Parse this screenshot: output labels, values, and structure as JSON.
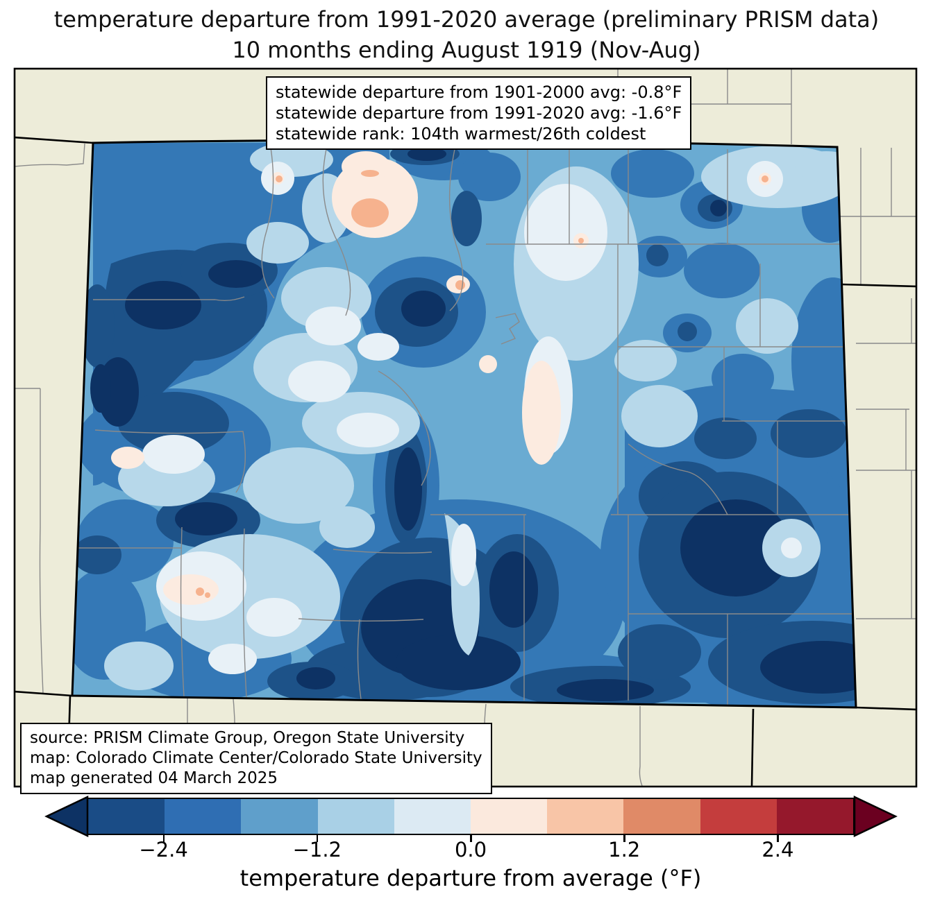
{
  "title": {
    "line1": "temperature departure from 1991-2020 average (preliminary PRISM data)",
    "line2": "10 months ending August 1919 (Nov-Aug)"
  },
  "stats_box": {
    "line1": "statewide departure from 1901-2000 avg: -0.8°F",
    "line2": "statewide departure from 1991-2020 avg: -1.6°F",
    "line3": "statewide rank: 104th warmest/26th coldest"
  },
  "source_box": {
    "line1": "source: PRISM Climate Group, Oregon State University",
    "line2": "map: Colorado Climate Center/Colorado State University",
    "line3": "map generated 04 March 2025"
  },
  "colorbar": {
    "label": "temperature departure from average (°F)",
    "ticks": [
      "−2.4",
      "−1.2",
      "0.0",
      "1.2",
      "2.4"
    ],
    "tick_positions": [
      10,
      30,
      50,
      70,
      90
    ],
    "range_f": [
      -3.0,
      3.0
    ],
    "segments": [
      "#1a4c86",
      "#2f6eb3",
      "#5f9fcb",
      "#a9d0e6",
      "#dceaf3",
      "#fbe9dd",
      "#f8c5a7",
      "#e08a67",
      "#c43d3d",
      "#95182c"
    ],
    "under_color": "#0d3264",
    "over_color": "#6b0020"
  },
  "map": {
    "region": "Colorado",
    "palette": {
      "beige": "#edecd9",
      "county": "#8a8a8a",
      "state": "#000000",
      "navy": "#0d3264",
      "dark": "#1d5288",
      "medium": "#3478b6",
      "lightmed": "#6aabd2",
      "light": "#b7d8ea",
      "vlight": "#e8f1f7",
      "porange": "#fcebe0",
      "orange": "#f6b28e"
    }
  }
}
